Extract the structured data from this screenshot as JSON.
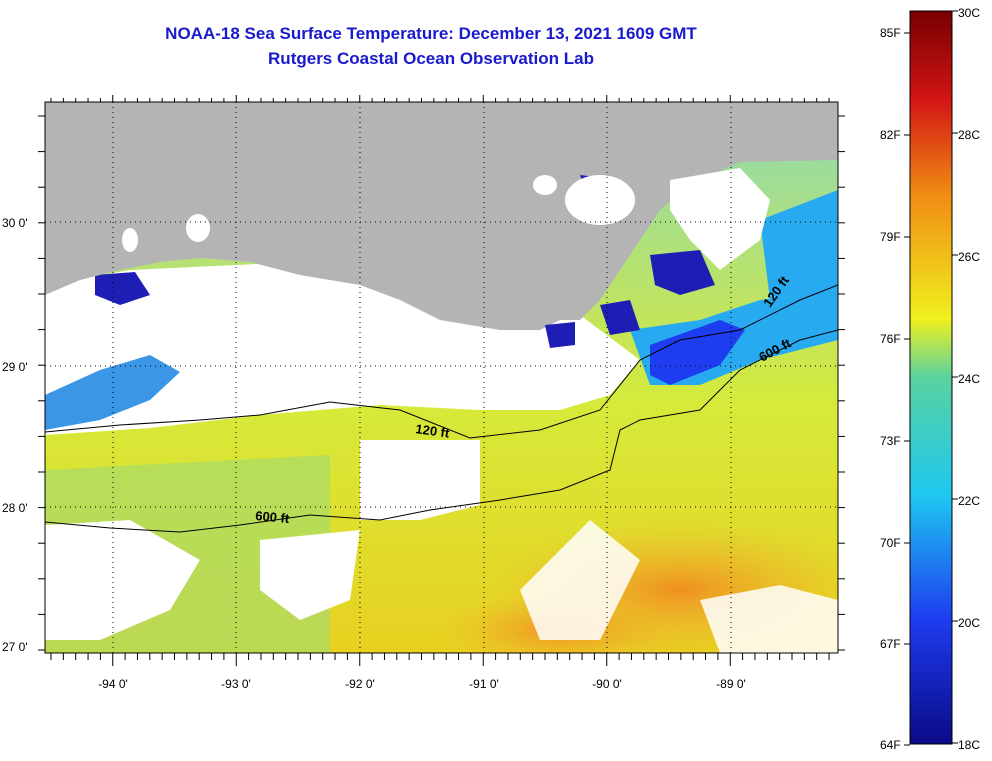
{
  "title": "NOAA-18 Sea Surface Temperature:  December 13, 2021 1609 GMT",
  "subtitle": "Rutgers Coastal Ocean Observation Lab",
  "latitude_labels": [
    "30 0'",
    "29 0'",
    "28 0'",
    "27 0'"
  ],
  "longitude_labels": [
    "-94 0'",
    "-93 0'",
    "-92 0'",
    "-91 0'",
    "-90 0'",
    "-89 0'"
  ],
  "contour_labels": [
    "120 ft",
    "600 ft",
    "120 ft",
    "600 ft"
  ],
  "colorbar": {
    "fahrenheit_labels": [
      "85F",
      "82F",
      "79F",
      "76F",
      "73F",
      "70F",
      "67F",
      "64F"
    ],
    "celsius_labels": [
      "30C",
      "28C",
      "26C",
      "24C",
      "22C",
      "20C",
      "18C"
    ],
    "range_c": [
      18,
      30
    ],
    "colors": [
      "#0a0a86",
      "#1e3cf0",
      "#1ec8f0",
      "#f0f01e",
      "#f08c14",
      "#d21414",
      "#780000"
    ]
  },
  "colors": {
    "land": "#b4b4b4",
    "cloud": "#ffffff",
    "title": "#1a1acd"
  }
}
